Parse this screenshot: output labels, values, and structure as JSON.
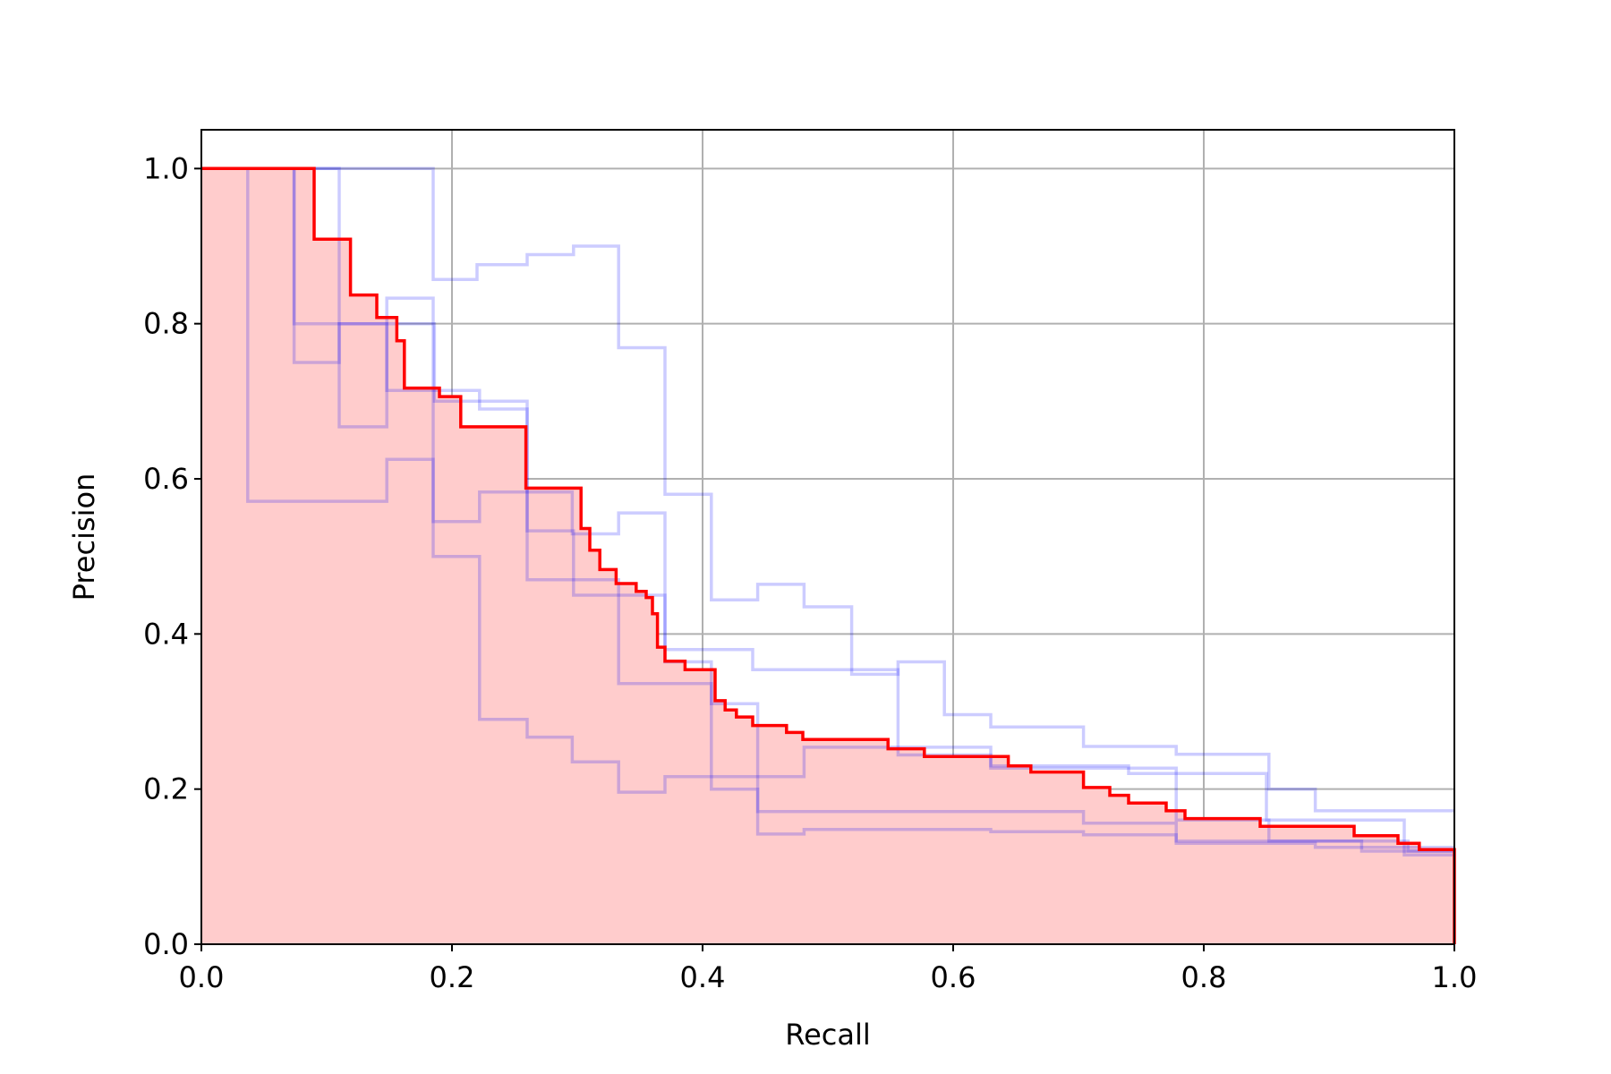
{
  "chart_data": {
    "type": "line",
    "xlabel": "Recall",
    "ylabel": "Precision",
    "xlim": [
      0,
      1
    ],
    "ylim": [
      0,
      1.05
    ],
    "xticks": [
      "0.0",
      "0.2",
      "0.4",
      "0.6",
      "0.8",
      "1.0"
    ],
    "yticks": [
      "0.0",
      "0.2",
      "0.4",
      "0.6",
      "0.8",
      "1.0"
    ],
    "grid": true,
    "colors": {
      "mean": "#ff0000",
      "mean_fill": "#ffcccc",
      "folds": "#0000ff"
    },
    "mean_curve": {
      "recall": [
        0,
        0.09,
        0.09,
        0.119,
        0.119,
        0.14,
        0.14,
        0.156,
        0.156,
        0.162,
        0.162,
        0.19,
        0.19,
        0.207,
        0.207,
        0.259,
        0.259,
        0.303,
        0.303,
        0.31,
        0.31,
        0.318,
        0.318,
        0.331,
        0.331,
        0.347,
        0.347,
        0.355,
        0.355,
        0.36,
        0.36,
        0.364,
        0.364,
        0.37,
        0.37,
        0.386,
        0.386,
        0.41,
        0.41,
        0.418,
        0.418,
        0.427,
        0.427,
        0.44,
        0.44,
        0.467,
        0.467,
        0.48,
        0.48,
        0.548,
        0.548,
        0.577,
        0.577,
        0.644,
        0.644,
        0.662,
        0.662,
        0.704,
        0.704,
        0.725,
        0.725,
        0.74,
        0.74,
        0.77,
        0.77,
        0.785,
        0.785,
        0.845,
        0.845,
        0.92,
        0.92,
        0.955,
        0.955,
        0.972,
        0.972,
        1.0,
        1.0
      ],
      "precision": [
        1.0,
        1.0,
        0.909,
        0.909,
        0.837,
        0.837,
        0.808,
        0.808,
        0.778,
        0.778,
        0.717,
        0.717,
        0.706,
        0.706,
        0.667,
        0.667,
        0.588,
        0.588,
        0.536,
        0.536,
        0.508,
        0.508,
        0.483,
        0.483,
        0.465,
        0.465,
        0.455,
        0.455,
        0.447,
        0.447,
        0.426,
        0.426,
        0.383,
        0.383,
        0.365,
        0.365,
        0.354,
        0.354,
        0.314,
        0.314,
        0.302,
        0.302,
        0.293,
        0.293,
        0.282,
        0.282,
        0.273,
        0.273,
        0.264,
        0.264,
        0.252,
        0.252,
        0.242,
        0.242,
        0.23,
        0.23,
        0.222,
        0.222,
        0.202,
        0.202,
        0.192,
        0.192,
        0.182,
        0.182,
        0.172,
        0.172,
        0.162,
        0.162,
        0.152,
        0.152,
        0.14,
        0.14,
        0.13,
        0.13,
        0.122,
        0.122,
        0.0
      ]
    },
    "series": [
      {
        "recall": [
          0,
          0.074,
          0.074,
          0.11,
          0.11,
          0.186,
          0.186,
          0.26,
          0.26,
          0.297,
          0.297,
          0.37,
          0.37,
          0.44,
          0.44,
          0.556,
          0.556,
          0.63,
          0.63,
          0.74,
          0.74,
          0.85,
          0.85,
          0.96,
          0.96,
          1.0
        ],
        "precision": [
          1.0,
          1.0,
          0.75,
          0.75,
          0.8,
          0.8,
          0.7,
          0.7,
          0.533,
          0.533,
          0.45,
          0.45,
          0.38,
          0.38,
          0.354,
          0.354,
          0.244,
          0.244,
          0.23,
          0.23,
          0.22,
          0.22,
          0.16,
          0.16,
          0.115,
          0.115
        ]
      },
      {
        "recall": [
          0,
          0.185,
          0.185,
          0.22,
          0.22,
          0.26,
          0.26,
          0.297,
          0.297,
          0.333,
          0.333,
          0.37,
          0.37,
          0.407,
          0.407,
          0.444,
          0.444,
          0.481,
          0.481,
          0.519,
          0.519,
          0.556,
          0.556,
          0.593,
          0.593,
          0.63,
          0.63,
          0.704,
          0.704,
          0.778,
          0.778,
          0.852,
          0.852,
          0.889,
          0.889,
          1.0
        ],
        "precision": [
          1.0,
          1.0,
          0.857,
          0.857,
          0.876,
          0.876,
          0.889,
          0.889,
          0.9,
          0.9,
          0.769,
          0.769,
          0.58,
          0.58,
          0.444,
          0.444,
          0.464,
          0.464,
          0.435,
          0.435,
          0.348,
          0.348,
          0.364,
          0.364,
          0.296,
          0.296,
          0.28,
          0.28,
          0.255,
          0.255,
          0.245,
          0.245,
          0.2,
          0.2,
          0.172,
          0.172
        ]
      },
      {
        "recall": [
          0,
          0.11,
          0.11,
          0.148,
          0.148,
          0.185,
          0.185,
          0.222,
          0.222,
          0.296,
          0.296,
          0.333,
          0.333,
          0.37,
          0.37,
          0.407,
          0.407,
          0.444,
          0.444,
          0.481,
          0.481,
          0.63,
          0.63,
          0.778,
          0.778,
          0.852,
          0.852,
          0.926,
          0.926,
          1.0
        ],
        "precision": [
          1.0,
          1.0,
          0.667,
          0.667,
          0.833,
          0.833,
          0.545,
          0.545,
          0.583,
          0.583,
          0.529,
          0.529,
          0.556,
          0.556,
          0.364,
          0.364,
          0.31,
          0.31,
          0.216,
          0.216,
          0.254,
          0.254,
          0.227,
          0.227,
          0.16,
          0.16,
          0.133,
          0.133,
          0.12,
          0.12
        ]
      },
      {
        "recall": [
          0,
          0.037,
          0.037,
          0.148,
          0.148,
          0.185,
          0.185,
          0.222,
          0.222,
          0.26,
          0.26,
          0.296,
          0.296,
          0.333,
          0.333,
          0.37,
          0.37,
          0.444,
          0.444,
          0.704,
          0.704,
          0.778,
          0.778,
          0.963,
          0.963,
          1.0
        ],
        "precision": [
          1.0,
          1.0,
          0.571,
          0.571,
          0.625,
          0.625,
          0.5,
          0.5,
          0.29,
          0.29,
          0.267,
          0.267,
          0.235,
          0.235,
          0.196,
          0.196,
          0.216,
          0.216,
          0.171,
          0.171,
          0.156,
          0.156,
          0.133,
          0.133,
          0.12,
          0.12
        ]
      },
      {
        "recall": [
          0,
          0.074,
          0.074,
          0.148,
          0.148,
          0.222,
          0.222,
          0.26,
          0.26,
          0.333,
          0.333,
          0.407,
          0.407,
          0.444,
          0.444,
          0.481,
          0.481,
          0.63,
          0.63,
          0.704,
          0.704,
          0.778,
          0.778,
          0.889,
          0.889,
          1.0
        ],
        "precision": [
          1.0,
          1.0,
          0.8,
          0.8,
          0.714,
          0.714,
          0.69,
          0.69,
          0.47,
          0.47,
          0.336,
          0.336,
          0.2,
          0.2,
          0.142,
          0.142,
          0.148,
          0.148,
          0.145,
          0.145,
          0.141,
          0.141,
          0.13,
          0.13,
          0.125,
          0.125
        ]
      }
    ]
  }
}
